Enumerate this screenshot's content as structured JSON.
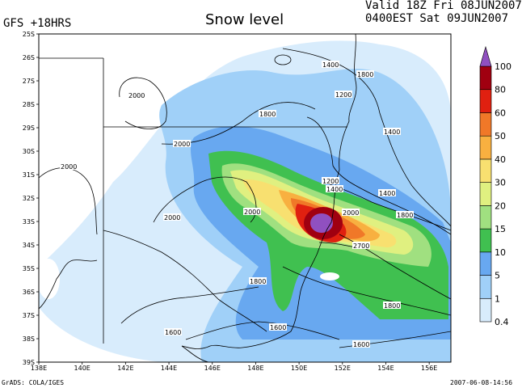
{
  "header": {
    "model_label": "GFS +18HRS",
    "title": "Snow level",
    "valid_line1": "Valid 18Z Fri 08JUN2007",
    "valid_line2": "0400EST Sat 09JUN2007"
  },
  "footer": {
    "credit": "GrADS: COLA/IGES",
    "timestamp": "2007-06-08-14:56"
  },
  "chart_data": {
    "type": "heatmap",
    "lat_labels": [
      "25S",
      "26S",
      "27S",
      "28S",
      "29S",
      "30S",
      "31S",
      "32S",
      "33S",
      "34S",
      "35S",
      "36S",
      "37S",
      "38S",
      "39S"
    ],
    "lon_labels": [
      "138E",
      "140E",
      "142E",
      "144E",
      "146E",
      "148E",
      "150E",
      "152E",
      "154E",
      "156E"
    ],
    "contour_labels": [
      "2000",
      "2000",
      "2000",
      "2000",
      "2000",
      "1800",
      "1800",
      "1800",
      "1800",
      "1600",
      "1600",
      "1600",
      "1400",
      "1400",
      "1400",
      "1400",
      "1200",
      "1200",
      "1800",
      "2000",
      "2700"
    ],
    "colorbar": {
      "levels": [
        "0.4",
        "1",
        "5",
        "10",
        "15",
        "20",
        "30",
        "40",
        "50",
        "60",
        "80",
        "100"
      ],
      "colors": [
        "#d8ecfc",
        "#a0d0f8",
        "#68a8f0",
        "#40c050",
        "#a0e080",
        "#e0f080",
        "#f8e070",
        "#f8b040",
        "#f07828",
        "#e02010",
        "#a00010",
        "#9050c0"
      ]
    }
  }
}
